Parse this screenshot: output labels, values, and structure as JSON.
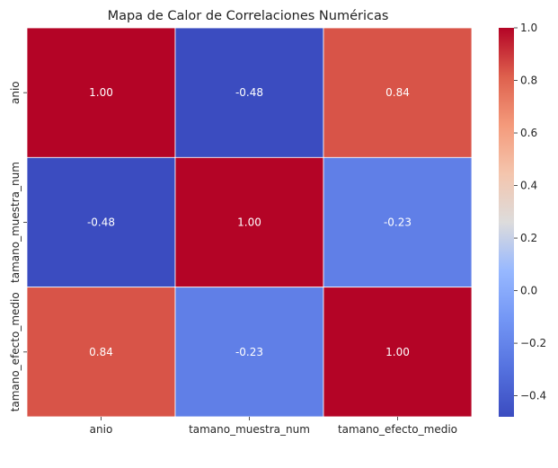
{
  "chart_data": {
    "type": "heatmap",
    "title": "Mapa de Calor de Correlaciones Numéricas",
    "x_categories": [
      "anio",
      "tamano_muestra_num",
      "tamano_efecto_medio"
    ],
    "y_categories": [
      "anio",
      "tamano_muestra_num",
      "tamano_efecto_medio"
    ],
    "values": [
      [
        1.0,
        -0.48,
        0.84
      ],
      [
        -0.48,
        1.0,
        -0.23
      ],
      [
        0.84,
        -0.23,
        1.0
      ]
    ],
    "annotations": [
      [
        "1.00",
        "-0.48",
        "0.84"
      ],
      [
        "-0.48",
        "1.00",
        "-0.23"
      ],
      [
        "0.84",
        "-0.23",
        "1.00"
      ]
    ],
    "colormap": "coolwarm",
    "color_range": [
      -0.48,
      1.0
    ],
    "colorbar_ticks": [
      "−0.4",
      "−0.2",
      "0.0",
      "0.2",
      "0.4",
      "0.6",
      "0.8",
      "1.0"
    ],
    "colorbar_tick_values": [
      -0.4,
      -0.2,
      0.0,
      0.2,
      0.4,
      0.6,
      0.8,
      1.0
    ],
    "cell_border_color": "#ffffff",
    "grid": false
  }
}
